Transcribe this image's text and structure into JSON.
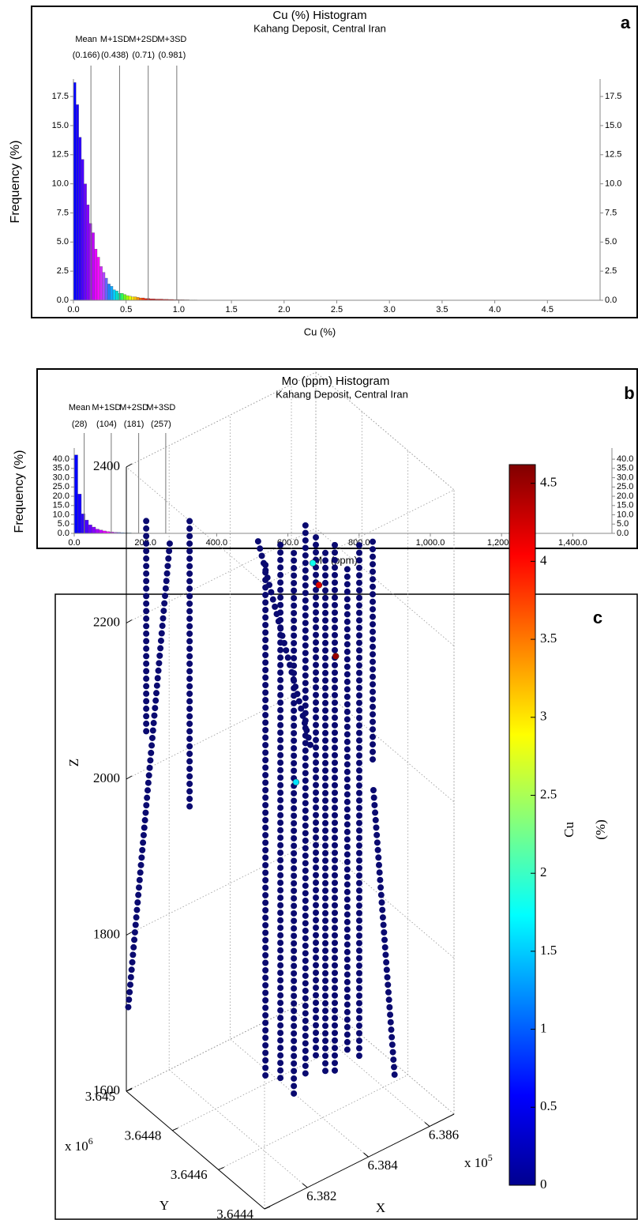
{
  "chart_data": [
    {
      "type": "histogram",
      "panel": "a",
      "title": "Cu (%) Histogram",
      "subtitle": "Kahang Deposit, Central Iran",
      "x_label": "Cu (%)",
      "y_label": "Frequency (%)",
      "bins": [
        0,
        0.025,
        0.05,
        0.075,
        0.1,
        0.125,
        0.15,
        0.175,
        0.2,
        0.225,
        0.25,
        0.275,
        0.3,
        0.325,
        0.35,
        0.375,
        0.4,
        0.425,
        0.45,
        0.475,
        0.5,
        0.525,
        0.55,
        0.575,
        0.6,
        0.625,
        0.65,
        0.675,
        0.7,
        0.725,
        0.75,
        0.775,
        0.8,
        0.825,
        0.85,
        0.875,
        0.9,
        0.925,
        0.95,
        0.975,
        1.0,
        1.025,
        1.05,
        1.075,
        1.1,
        1.125,
        1.15,
        1.175,
        1.2
      ],
      "values": [
        18.7,
        16.8,
        14.0,
        12.1,
        10.0,
        8.2,
        6.6,
        5.8,
        4.4,
        3.7,
        2.9,
        2.4,
        1.9,
        1.4,
        1.2,
        0.9,
        0.8,
        0.6,
        0.6,
        0.5,
        0.4,
        0.35,
        0.3,
        0.3,
        0.25,
        0.2,
        0.2,
        0.15,
        0.15,
        0.12,
        0.12,
        0.1,
        0.1,
        0.1,
        0.08,
        0.08,
        0.07,
        0.07,
        0.06,
        0.06,
        0.05,
        0.05,
        0.04,
        0.04,
        0.03,
        0.03,
        0.03,
        0.02
      ],
      "colormap": [
        "#0000ff",
        "#3000ff",
        "#7000ff",
        "#b000ff",
        "#ff00ff",
        "#c040ff",
        "#2080ff",
        "#00d0ff",
        "#00ff90",
        "#80ff00",
        "#ffff00",
        "#ffa000",
        "#ff3000",
        "#e00000"
      ],
      "xlim": [
        0,
        5
      ],
      "ylim": [
        0,
        19
      ],
      "xticks": [
        {
          "value": 0,
          "label": "0.0"
        },
        0.5,
        {
          "value": 1,
          "label": "1.0"
        },
        1.5,
        {
          "value": 2,
          "label": "2.0"
        },
        2.5,
        {
          "value": 3,
          "label": "3.0"
        },
        3.5,
        {
          "value": 4,
          "label": "4.0"
        },
        4.5
      ],
      "yticks": [
        {
          "value": 0,
          "label": "0.0"
        },
        2.5,
        {
          "value": 5,
          "label": "5.0"
        },
        7.5,
        {
          "value": 10,
          "label": "10.0"
        },
        12.5,
        {
          "value": 15,
          "label": "15.0"
        },
        17.5
      ],
      "mirror_y_axis": true,
      "ref_lines": [
        {
          "name": "Mean",
          "value": 0.166,
          "label": "(0.166)"
        },
        {
          "name": "M+1SD",
          "value": 0.438,
          "label": "(0.438)"
        },
        {
          "name": "M+2SD",
          "value": 0.71,
          "label": "(0.71)"
        },
        {
          "name": "M+3SD",
          "value": 0.981,
          "label": "(0.981)"
        }
      ]
    },
    {
      "type": "histogram",
      "panel": "b",
      "title": "Mo (ppm) Histogram",
      "subtitle": "Kahang Deposit, Central Iran",
      "x_label": "Mo (ppm)",
      "y_label": "Frequency (%)",
      "bins": [
        0,
        10,
        20,
        30,
        40,
        50,
        60,
        70,
        80,
        90,
        100,
        110,
        120,
        130,
        140,
        150,
        160,
        170,
        180,
        190,
        200,
        210,
        220,
        230,
        240,
        250,
        260,
        270,
        280,
        290,
        300
      ],
      "values": [
        42.3,
        21.2,
        10.5,
        7.2,
        4.6,
        3.4,
        2.3,
        1.8,
        1.3,
        1.0,
        0.8,
        0.6,
        0.5,
        0.4,
        0.3,
        0.3,
        0.2,
        0.2,
        0.15,
        0.1,
        0.1,
        0.08,
        0.08,
        0.06,
        0.05,
        0.05,
        0.04,
        0.04,
        0.03,
        0.03
      ],
      "colormap": [
        "#0000ff",
        "#3000ff",
        "#7000ff",
        "#b000ff",
        "#ff00ff",
        "#c040ff",
        "#2080ff",
        "#00d0ff",
        "#00ff90",
        "#80ff00",
        "#ffff00",
        "#ffa000",
        "#ff3000",
        "#e00000"
      ],
      "xlim": [
        0,
        1510
      ],
      "ylim": [
        0,
        46
      ],
      "xticks": [
        {
          "value": 0,
          "label": "0.0"
        },
        {
          "value": 200,
          "label": "200.0"
        },
        {
          "value": 400,
          "label": "400.0"
        },
        {
          "value": 600,
          "label": "600.0"
        },
        {
          "value": 800,
          "label": "800.0"
        },
        {
          "value": 1000,
          "label": "1,000.0"
        },
        {
          "value": 1200,
          "label": "1,200.0"
        },
        {
          "value": 1400,
          "label": "1,400.0"
        }
      ],
      "yticks": [
        {
          "value": 0,
          "label": "0.0"
        },
        {
          "value": 5,
          "label": "5.0"
        },
        {
          "value": 10,
          "label": "10.0"
        },
        {
          "value": 15,
          "label": "15.0"
        },
        {
          "value": 20,
          "label": "20.0"
        },
        {
          "value": 25,
          "label": "25.0"
        },
        {
          "value": 30,
          "label": "30.0"
        },
        {
          "value": 35,
          "label": "35.0"
        },
        {
          "value": 40,
          "label": "40.0"
        }
      ],
      "mirror_y_axis": true,
      "ref_lines": [
        {
          "name": "Mean",
          "value": 28,
          "label": "(28)"
        },
        {
          "name": "M+1SD",
          "value": 104,
          "label": "(104)"
        },
        {
          "name": "M+2SD",
          "value": 181,
          "label": "(181)"
        },
        {
          "name": "M+3SD",
          "value": 257,
          "label": "(257)"
        }
      ]
    },
    {
      "type": "scatter3d",
      "panel": "c",
      "x_label": "X",
      "y_label": "Y",
      "z_label": "Z",
      "xlim": [
        6.3806,
        6.3868
      ],
      "ylim": [
        3.6444,
        3.645
      ],
      "zlim": [
        1600,
        2400
      ],
      "xticks": [
        6.382,
        6.384,
        6.386
      ],
      "yticks": [
        3.6444,
        3.6446,
        3.6448,
        3.645
      ],
      "zticks": [
        1600,
        1800,
        2000,
        2200,
        2400
      ],
      "x_multiplier": {
        "base": "x 10",
        "exponent": "5"
      },
      "y_multiplier": {
        "base": "x 10",
        "exponent": "6"
      },
      "grid": true,
      "color": "#0a0a70",
      "series": [
        {
          "x": [
            6.38125,
            6.38125
          ],
          "y": [
            3.645,
            3.645
          ],
          "z": [
            2318,
            2044
          ]
        },
        {
          "x": [
            6.38267,
            6.38267
          ],
          "y": [
            3.645,
            3.645
          ],
          "z": [
            2290,
            1920
          ]
        },
        {
          "x": [
            6.38202,
            6.38065
          ],
          "y": [
            3.645,
            3.645
          ],
          "z": [
            2274,
            1701
          ]
        },
        {
          "x": [
            6.38289,
            6.38289
          ],
          "y": [
            3.6447,
            3.6447
          ],
          "z": [
            2305,
            1642
          ]
        },
        {
          "x": [
            6.38338,
            6.38338
          ],
          "y": [
            3.6447,
            3.6447
          ],
          "z": [
            2321,
            1637
          ]
        },
        {
          "x": [
            6.38382,
            6.38382
          ],
          "y": [
            3.6447,
            3.6447
          ],
          "z": [
            2302,
            1603
          ]
        },
        {
          "x": [
            6.3842,
            6.3842
          ],
          "y": [
            3.6447,
            3.6447
          ],
          "z": [
            2330,
            1621
          ]
        },
        {
          "x": [
            6.38454,
            6.38454
          ],
          "y": [
            3.6447,
            3.6447
          ],
          "z": [
            2308,
            1635
          ]
        },
        {
          "x": [
            6.38485,
            6.38485
          ],
          "y": [
            3.6447,
            3.6447
          ],
          "z": [
            2282,
            1618
          ]
        },
        {
          "x": [
            6.38516,
            6.38516
          ],
          "y": [
            3.6447,
            3.6447
          ],
          "z": [
            2286,
            1610
          ]
        },
        {
          "x": [
            6.38557,
            6.38557
          ],
          "y": [
            3.6447,
            3.6447
          ],
          "z": [
            2247,
            1629
          ]
        },
        {
          "x": [
            6.38596,
            6.38596
          ],
          "y": [
            3.6447,
            3.6447
          ],
          "z": [
            2270,
            1610
          ]
        },
        {
          "x": [
            6.38552,
            6.38622
          ],
          "y": [
            3.64458,
            3.64458
          ],
          "z": [
            1995,
            1612
          ]
        },
        {
          "x": [
            6.38265,
            6.38441
          ],
          "y": [
            3.6447,
            3.6447
          ],
          "z": [
            2340,
            2037
          ]
        },
        {
          "x": [
            6.3864,
            6.3864
          ],
          "y": [
            3.6447,
            3.6447
          ],
          "z": [
            2266,
            1987
          ]
        }
      ],
      "points": {
        "x": [
          6.38464,
          6.38519,
          6.38389,
          6.38444
        ],
        "y": [
          3.6447,
          3.6447,
          3.6447,
          3.6447
        ],
        "z": [
          2245,
          2143,
          2007,
          2277
        ],
        "cu": [
          4.2,
          4.5,
          1.6,
          1.8
        ]
      },
      "colorbar": {
        "label": "Cu",
        "unit": "(%)",
        "lim": [
          0,
          4.62
        ],
        "ticks": [
          0,
          0.5,
          1,
          1.5,
          2,
          2.5,
          3,
          3.5,
          4,
          4.5
        ],
        "colormap": [
          "#00008f",
          "#0000ff",
          "#0080ff",
          "#00ffff",
          "#80ff80",
          "#ffff00",
          "#ff8000",
          "#ff0000",
          "#800000"
        ]
      }
    }
  ]
}
